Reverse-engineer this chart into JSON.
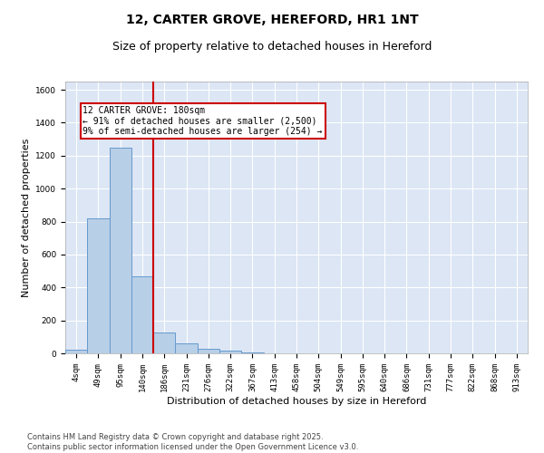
{
  "title1": "12, CARTER GROVE, HEREFORD, HR1 1NT",
  "title2": "Size of property relative to detached houses in Hereford",
  "xlabel": "Distribution of detached houses by size in Hereford",
  "ylabel": "Number of detached properties",
  "categories": [
    "4sqm",
    "49sqm",
    "95sqm",
    "140sqm",
    "186sqm",
    "231sqm",
    "276sqm",
    "322sqm",
    "367sqm",
    "413sqm",
    "458sqm",
    "504sqm",
    "549sqm",
    "595sqm",
    "640sqm",
    "686sqm",
    "731sqm",
    "777sqm",
    "822sqm",
    "868sqm",
    "913sqm"
  ],
  "values": [
    22,
    820,
    1250,
    465,
    125,
    58,
    28,
    18,
    8,
    0,
    0,
    0,
    0,
    0,
    0,
    0,
    0,
    0,
    0,
    0,
    0
  ],
  "bar_color": "#b8cfe8",
  "bar_edge_color": "#6699cc",
  "vline_x": 3.5,
  "vline_color": "#cc0000",
  "annotation_box_text": "12 CARTER GROVE: 180sqm\n← 91% of detached houses are smaller (2,500)\n9% of semi-detached houses are larger (254) →",
  "box_color": "#cc0000",
  "ylim": [
    0,
    1650
  ],
  "yticks": [
    0,
    200,
    400,
    600,
    800,
    1000,
    1200,
    1400,
    1600
  ],
  "background_color": "#dce6f5",
  "grid_color": "#ffffff",
  "footnote": "Contains HM Land Registry data © Crown copyright and database right 2025.\nContains public sector information licensed under the Open Government Licence v3.0.",
  "title_fontsize": 10,
  "subtitle_fontsize": 9,
  "xlabel_fontsize": 8,
  "ylabel_fontsize": 8,
  "tick_fontsize": 6.5,
  "annot_fontsize": 7,
  "footnote_fontsize": 6
}
